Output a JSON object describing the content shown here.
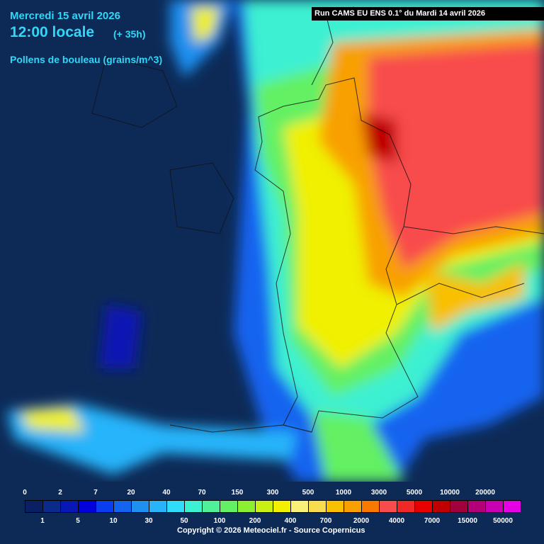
{
  "header": {
    "date": "Mercredi 15 avril 2026",
    "hour": "12:00 locale",
    "lead": "(+ 35h)",
    "variable": "Pollens de bouleau (grains/m^3)",
    "run": "Run CAMS EU ENS 0.1° du Mardi 14 avril 2026"
  },
  "legend": {
    "boxes": [
      {
        "label": "0",
        "color": "#0b1f63"
      },
      {
        "label": "1",
        "color": "#0a2a8c"
      },
      {
        "label": "2",
        "color": "#0818b4"
      },
      {
        "label": "5",
        "color": "#0000dc"
      },
      {
        "label": "7",
        "color": "#0a3cf0"
      },
      {
        "label": "10",
        "color": "#1464f0"
      },
      {
        "label": "20",
        "color": "#1e90f0"
      },
      {
        "label": "30",
        "color": "#28b4fa"
      },
      {
        "label": "40",
        "color": "#30dcfa"
      },
      {
        "label": "50",
        "color": "#3cf0d2"
      },
      {
        "label": "70",
        "color": "#50f09a"
      },
      {
        "label": "100",
        "color": "#64f064"
      },
      {
        "label": "150",
        "color": "#8cf032"
      },
      {
        "label": "200",
        "color": "#c8f014"
      },
      {
        "label": "300",
        "color": "#f0f000"
      },
      {
        "label": "400",
        "color": "#f8f078"
      },
      {
        "label": "500",
        "color": "#f8dc50"
      },
      {
        "label": "700",
        "color": "#f8c000"
      },
      {
        "label": "1000",
        "color": "#f8a000"
      },
      {
        "label": "2000",
        "color": "#f87800"
      },
      {
        "label": "3000",
        "color": "#f84c4c"
      },
      {
        "label": "4000",
        "color": "#f02828"
      },
      {
        "label": "5000",
        "color": "#e60000"
      },
      {
        "label": "7000",
        "color": "#c00000"
      },
      {
        "label": "10000",
        "color": "#a0003c"
      },
      {
        "label": "15000",
        "color": "#b40078"
      },
      {
        "label": "20000",
        "color": "#c800b4"
      },
      {
        "label": "50000",
        "color": "#e600e6"
      }
    ]
  },
  "footer": {
    "copyright": "Copyright © 2026 Meteociel.fr - Source Copernicus"
  }
}
